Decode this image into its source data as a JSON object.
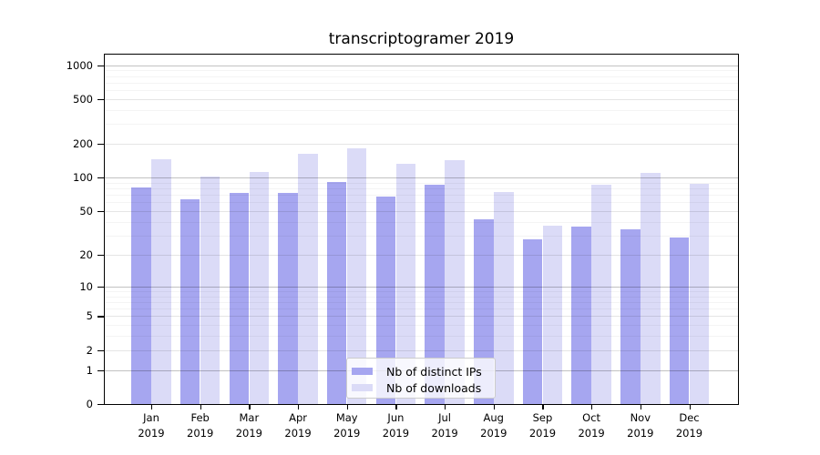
{
  "chart_data": {
    "type": "bar",
    "title": "transcriptogramer 2019",
    "categories": [
      "Jan",
      "Feb",
      "Mar",
      "Apr",
      "May",
      "Jun",
      "Jul",
      "Aug",
      "Sep",
      "Oct",
      "Nov",
      "Dec"
    ],
    "category_year_line": "2019",
    "series": [
      {
        "name": "Nb of distinct IPs",
        "color": "#a6a6f0",
        "values": [
          82,
          64,
          73,
          73,
          92,
          68,
          87,
          42,
          28,
          36,
          34,
          29
        ]
      },
      {
        "name": "Nb of downloads",
        "color": "#dbdbf7",
        "values": [
          146,
          103,
          113,
          163,
          184,
          132,
          142,
          74,
          37,
          87,
          111,
          88
        ]
      }
    ],
    "xlabel": "",
    "ylabel": "",
    "yscale": "symlog (pixel position proportional to log1p(value))",
    "ylim": [
      0,
      1240
    ],
    "yticks": [
      0,
      1,
      2,
      5,
      10,
      20,
      50,
      100,
      200,
      500,
      1000
    ],
    "emphasized_gridlines": [
      1,
      10,
      100,
      1000
    ],
    "minor_gridlines": [
      3,
      4,
      6,
      7,
      8,
      9,
      30,
      40,
      60,
      70,
      80,
      90,
      300,
      400,
      600,
      700,
      800,
      900
    ],
    "grid": true,
    "legend": {
      "position": "lower-center-inside"
    }
  }
}
